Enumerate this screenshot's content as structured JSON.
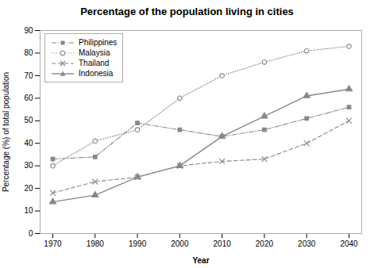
{
  "chart_data": {
    "type": "line",
    "title": "Percentage of the population living in cities",
    "xlabel": "Year",
    "ylabel": "Percentage (%) of total population",
    "x": [
      1970,
      1980,
      1990,
      2000,
      2010,
      2020,
      2030,
      2040
    ],
    "series": [
      {
        "name": "Philippines",
        "color": "#888888",
        "marker": "square",
        "line_style": "dashdot",
        "values": [
          33,
          34,
          49,
          46,
          43,
          46,
          51,
          56
        ]
      },
      {
        "name": "Malaysia",
        "color": "#888888",
        "marker": "open_circle",
        "line_style": "dotted",
        "values": [
          30,
          41,
          46,
          60,
          70,
          76,
          81,
          83
        ]
      },
      {
        "name": "Thailand",
        "color": "#888888",
        "marker": "x",
        "line_style": "dashed",
        "values": [
          18,
          23,
          25,
          30,
          32,
          33,
          40,
          50
        ]
      },
      {
        "name": "Indonesia",
        "color": "#888888",
        "marker": "triangle",
        "line_style": "solid",
        "values": [
          14,
          17,
          25,
          30,
          43,
          52,
          61,
          64
        ]
      }
    ],
    "xlim": [
      1967,
      2043
    ],
    "xticks": [
      1970,
      1980,
      1990,
      2000,
      2010,
      2020,
      2030,
      2040
    ],
    "ylim": [
      0,
      90
    ],
    "yticks": [
      0,
      10,
      20,
      30,
      40,
      50,
      60,
      70,
      80,
      90
    ],
    "grid": false,
    "legend": "upper left"
  }
}
